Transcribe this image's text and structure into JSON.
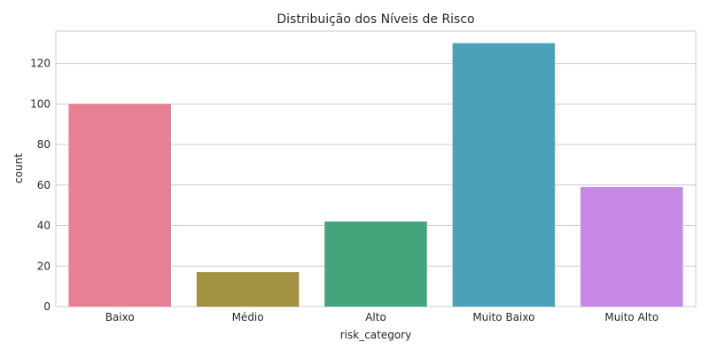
{
  "chart_data": {
    "type": "bar",
    "title": "Distribuição dos Níveis de Risco",
    "xlabel": "risk_category",
    "ylabel": "count",
    "categories": [
      "Baixo",
      "Médio",
      "Alto",
      "Muito Baixo",
      "Muito Alto"
    ],
    "values": [
      100,
      17,
      42,
      130,
      59
    ],
    "colors": [
      "#e88093",
      "#a19140",
      "#44a57c",
      "#4aa1b8",
      "#c888e6"
    ],
    "ylim": [
      0,
      136
    ],
    "yticks": [
      0,
      20,
      40,
      60,
      80,
      100,
      120
    ],
    "grid": true,
    "grid_axis": "y",
    "legend": "none"
  }
}
